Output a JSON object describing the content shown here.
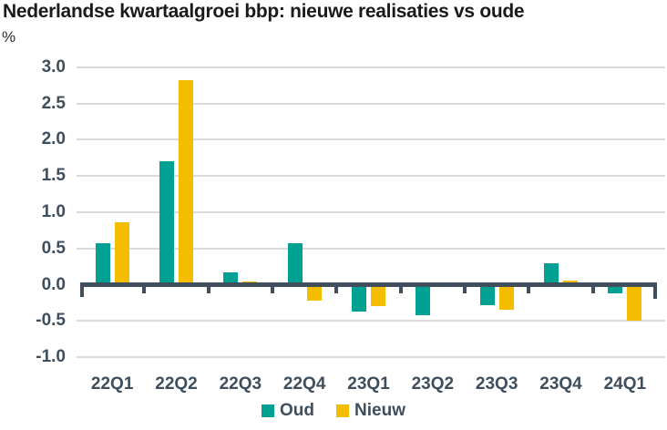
{
  "chart": {
    "title": "Nederlandse kwartaalgroei bbp: nieuwe realisaties vs oude",
    "unit": "%"
  },
  "chart_data": {
    "type": "bar",
    "title": "Nederlandse kwartaalgroei bbp: nieuwe realisaties vs oude",
    "ylabel": "%",
    "xlabel": "",
    "categories": [
      "22Q1",
      "22Q2",
      "22Q3",
      "22Q4",
      "23Q1",
      "23Q2",
      "23Q3",
      "23Q4",
      "24Q1"
    ],
    "series": [
      {
        "name": "Oud",
        "color": "#00A192",
        "values": [
          0.57,
          1.7,
          0.17,
          0.57,
          -0.37,
          -0.42,
          -0.28,
          0.29,
          -0.12
        ]
      },
      {
        "name": "Nieuw",
        "color": "#F4BD00",
        "values": [
          0.86,
          2.82,
          0.05,
          -0.22,
          -0.29,
          0.0,
          -0.35,
          0.06,
          -0.5
        ]
      }
    ],
    "ylim": [
      -1.0,
      3.0
    ],
    "yticks": [
      {
        "label": "3.0",
        "value": 3.0
      },
      {
        "label": "2.5",
        "value": 2.5
      },
      {
        "label": "2.0",
        "value": 2.0
      },
      {
        "label": "1.5",
        "value": 1.5
      },
      {
        "label": "1.0",
        "value": 1.0
      },
      {
        "label": "0.5",
        "value": 0.5
      },
      {
        "label": "0.0",
        "value": 0.0
      },
      {
        "label": "-0.5",
        "value": -0.5
      },
      {
        "label": "-1.0",
        "value": -1.0
      }
    ],
    "grid": "horizontal",
    "legend_position": "bottom-center",
    "colors": {
      "axis": "#414F5D",
      "grid": "#DADADA",
      "tick_text": "#3E4E5C",
      "title_text": "#1A1A1A"
    }
  }
}
